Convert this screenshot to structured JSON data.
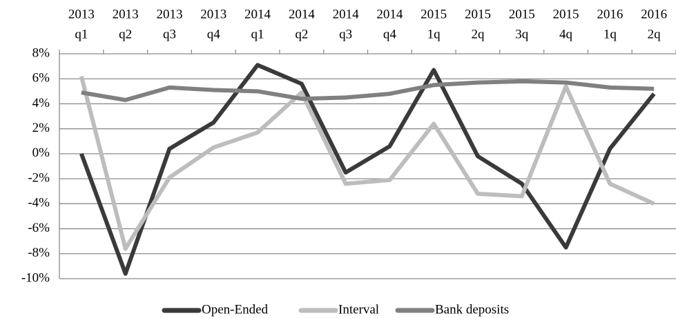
{
  "chart_data": {
    "type": "line",
    "categories": [
      [
        "2013",
        "q1"
      ],
      [
        "2013",
        "q2"
      ],
      [
        "2013",
        "q3"
      ],
      [
        "2013",
        "q4"
      ],
      [
        "2014",
        "q1"
      ],
      [
        "2014",
        "q2"
      ],
      [
        "2014",
        "q3"
      ],
      [
        "2014",
        "q4"
      ],
      [
        "2015",
        "1q"
      ],
      [
        "2015",
        "2q"
      ],
      [
        "2015",
        "3q"
      ],
      [
        "2015",
        "4q"
      ],
      [
        "2016",
        "1q"
      ],
      [
        "2016",
        "2q"
      ]
    ],
    "series": [
      {
        "name": "Open-Ended",
        "color": "#3a3a3a",
        "values": [
          0,
          -9.6,
          0.4,
          2.5,
          7.1,
          5.6,
          -1.5,
          0.6,
          6.7,
          -0.2,
          -2.4,
          -7.5,
          0.4,
          4.8
        ]
      },
      {
        "name": "Interval",
        "color": "#bdbdbd",
        "values": [
          6.2,
          -7.6,
          -1.9,
          0.5,
          1.7,
          4.9,
          -2.4,
          -2.1,
          2.4,
          -3.2,
          -3.4,
          5.4,
          -2.4,
          -4.0
        ]
      },
      {
        "name": "Bank deposits",
        "color": "#808080",
        "values": [
          4.9,
          4.3,
          5.3,
          5.1,
          5.0,
          4.4,
          4.5,
          4.8,
          5.5,
          5.7,
          5.8,
          5.7,
          5.3,
          5.2
        ]
      }
    ],
    "ylim": [
      -10,
      8
    ],
    "yticks": [
      {
        "value": -10,
        "label": "-10%"
      },
      {
        "value": -8,
        "label": "-8%"
      },
      {
        "value": -6,
        "label": "-6%"
      },
      {
        "value": -4,
        "label": "-4%"
      },
      {
        "value": -2,
        "label": "-2%"
      },
      {
        "value": 0,
        "label": "0%"
      },
      {
        "value": 2,
        "label": "2%"
      },
      {
        "value": 4,
        "label": "4%"
      },
      {
        "value": 6,
        "label": "6%"
      },
      {
        "value": 8,
        "label": "8%"
      }
    ],
    "grid": true,
    "legend": "bottom"
  }
}
